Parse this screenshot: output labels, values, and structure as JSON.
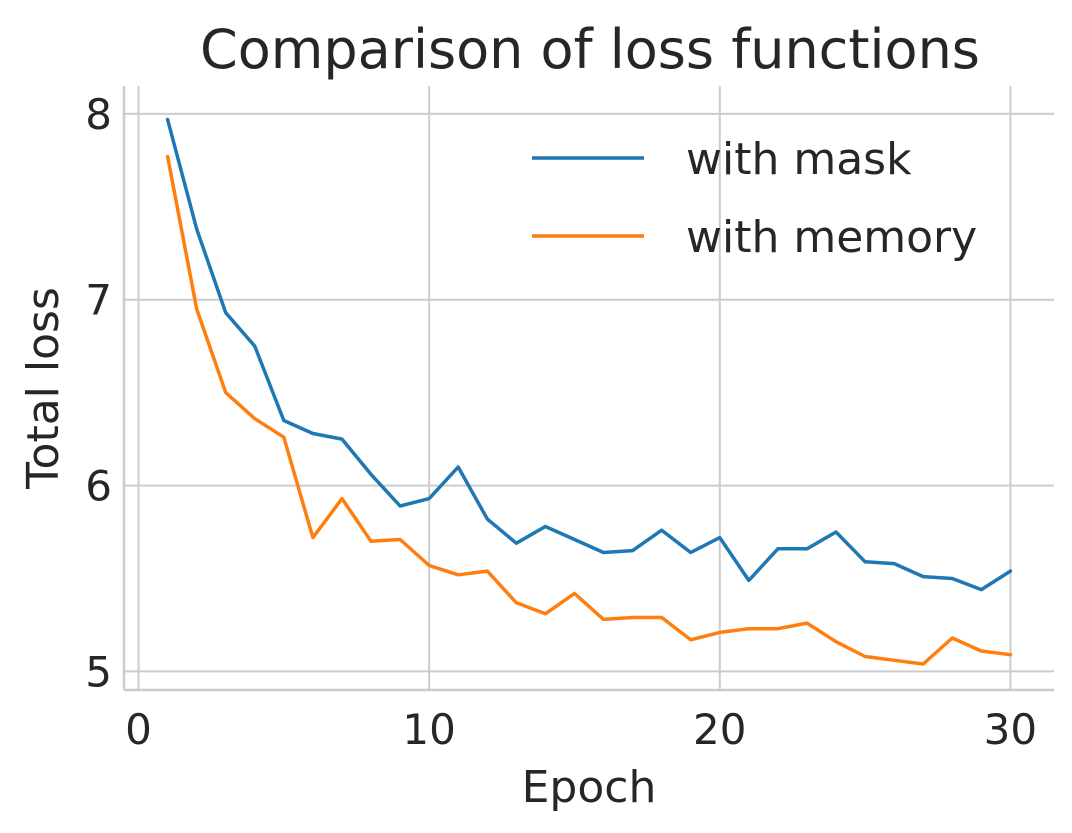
{
  "chart_data": {
    "type": "line",
    "title": "Comparison of loss functions",
    "xlabel": "Epoch",
    "ylabel": "Total loss",
    "xlim": [
      -0.5,
      31.5
    ],
    "ylim": [
      4.9,
      8.15
    ],
    "xticks": [
      0,
      10,
      20,
      30
    ],
    "yticks": [
      5,
      6,
      7,
      8
    ],
    "xtick_labels": [
      "0",
      "10",
      "20",
      "30"
    ],
    "ytick_labels": [
      "5",
      "6",
      "7",
      "8"
    ],
    "grid": true,
    "legend_position": "top-right",
    "x": [
      1,
      2,
      3,
      4,
      5,
      6,
      7,
      8,
      9,
      10,
      11,
      12,
      13,
      14,
      15,
      16,
      17,
      18,
      19,
      20,
      21,
      22,
      23,
      24,
      25,
      26,
      27,
      28,
      29,
      30
    ],
    "series": [
      {
        "name": "with mask",
        "color": "#1f77b4",
        "values": [
          7.97,
          7.38,
          6.93,
          6.75,
          6.35,
          6.28,
          6.25,
          6.06,
          5.89,
          5.93,
          6.1,
          5.82,
          5.69,
          5.78,
          5.71,
          5.64,
          5.65,
          5.76,
          5.64,
          5.72,
          5.49,
          5.66,
          5.66,
          5.75,
          5.59,
          5.58,
          5.51,
          5.5,
          5.44,
          5.54
        ]
      },
      {
        "name": "with memory",
        "color": "#ff7f0e",
        "values": [
          7.77,
          6.95,
          6.5,
          6.36,
          6.26,
          5.72,
          5.93,
          5.7,
          5.71,
          5.57,
          5.52,
          5.54,
          5.37,
          5.31,
          5.42,
          5.28,
          5.29,
          5.29,
          5.17,
          5.21,
          5.23,
          5.23,
          5.26,
          5.16,
          5.08,
          5.06,
          5.04,
          5.18,
          5.11,
          5.09
        ]
      }
    ]
  }
}
